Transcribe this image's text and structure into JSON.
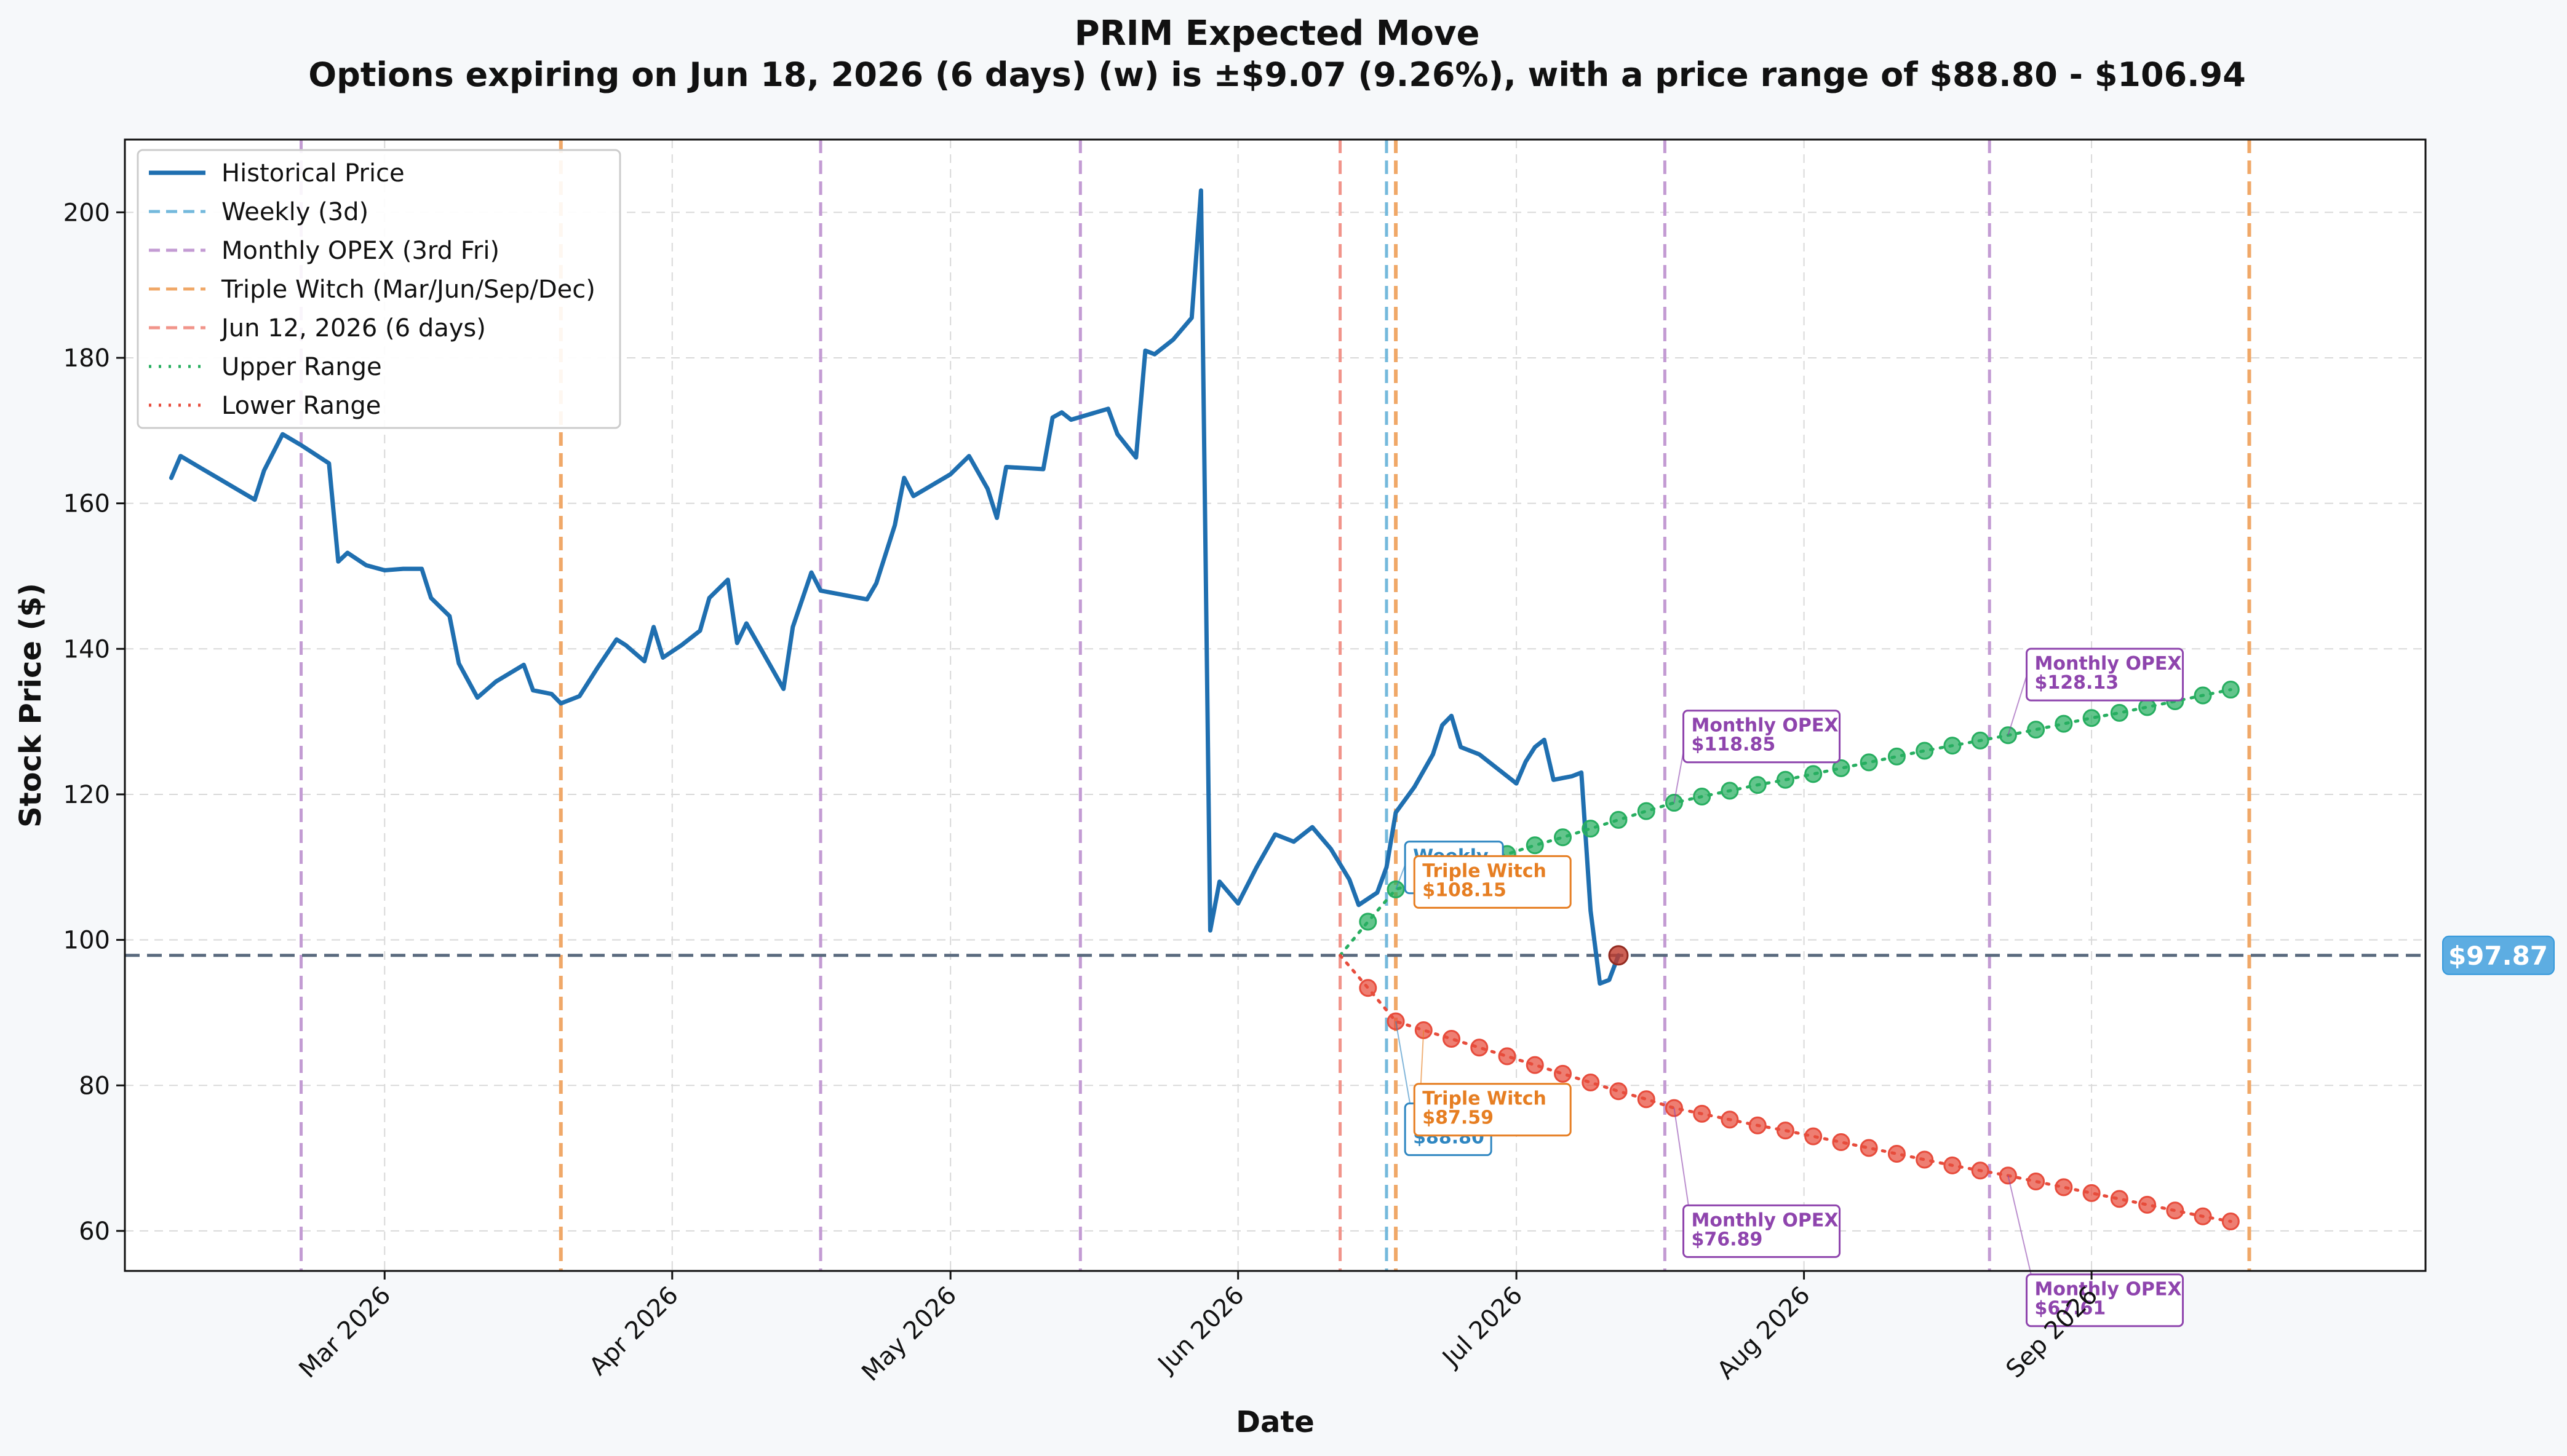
{
  "header": {
    "title": "PRIM Expected Move",
    "subtitle": "Options expiring on Jun 18, 2026 (6 days) (w) is ±$9.07 (9.26%), with a price range of $88.80 - $106.94"
  },
  "chart_data": {
    "type": "line",
    "xlabel": "Date",
    "ylabel": "Stock Price ($)",
    "ylim": [
      54.5,
      210
    ],
    "xlim": [
      "2026-02-01",
      "2026-10-07"
    ],
    "grid": true,
    "legend_position": "top-left",
    "x_ticks": [
      {
        "date": "2026-03-01",
        "label": "Mar 2026"
      },
      {
        "date": "2026-04-01",
        "label": "Apr 2026"
      },
      {
        "date": "2026-05-01",
        "label": "May 2026"
      },
      {
        "date": "2026-06-01",
        "label": "Jun 2026"
      },
      {
        "date": "2026-07-01",
        "label": "Jul 2026"
      },
      {
        "date": "2026-08-01",
        "label": "Aug 2026"
      },
      {
        "date": "2026-09-01",
        "label": "Sep 2026"
      }
    ],
    "y_ticks": [
      60,
      80,
      100,
      120,
      140,
      160,
      180,
      200
    ],
    "current_price": {
      "value": 97.87,
      "label": "$97.87",
      "color": "#5dade2"
    },
    "legend": [
      {
        "label": "Historical Price",
        "style": "solid",
        "color": "#1f6fb0"
      },
      {
        "label": "Weekly (3d)",
        "style": "dashed",
        "color": "#74b9dc"
      },
      {
        "label": "Monthly OPEX (3rd Fri)",
        "style": "dashed",
        "color": "#c39bd3"
      },
      {
        "label": "Triple Witch (Mar/Jun/Sep/Dec)",
        "style": "dashed",
        "color": "#f0a868"
      },
      {
        "label": "Jun 12, 2026 (6 days)",
        "style": "dashed",
        "color": "#f1948a"
      },
      {
        "label": "Upper Range",
        "style": "dotted",
        "color": "#27ae60"
      },
      {
        "label": "Lower Range",
        "style": "dotted",
        "color": "#e74c3c"
      }
    ],
    "vertical_lines": [
      {
        "date": "2026-02-20",
        "kind": "monthly",
        "color": "#c39bd3"
      },
      {
        "date": "2026-03-20",
        "kind": "triple",
        "color": "#f0a868"
      },
      {
        "date": "2026-04-17",
        "kind": "monthly",
        "color": "#c39bd3"
      },
      {
        "date": "2026-05-15",
        "kind": "monthly",
        "color": "#c39bd3"
      },
      {
        "date": "2026-06-12",
        "kind": "current",
        "color": "#f1948a"
      },
      {
        "date": "2026-06-17",
        "kind": "weekly",
        "color": "#74b9dc"
      },
      {
        "date": "2026-06-18",
        "kind": "triple",
        "color": "#f0a868"
      },
      {
        "date": "2026-07-17",
        "kind": "monthly",
        "color": "#c39bd3"
      },
      {
        "date": "2026-08-21",
        "kind": "monthly",
        "color": "#c39bd3"
      },
      {
        "date": "2026-09-18",
        "kind": "triple",
        "color": "#f0a868"
      }
    ],
    "series": [
      {
        "name": "Historical Price",
        "color": "#1f6fb0",
        "points": [
          [
            "2026-02-06",
            163.5
          ],
          [
            "2026-02-07",
            166.5
          ],
          [
            "2026-02-09",
            165
          ],
          [
            "2026-02-11",
            163.5
          ],
          [
            "2026-02-13",
            162
          ],
          [
            "2026-02-15",
            160.5
          ],
          [
            "2026-02-16",
            164.5
          ],
          [
            "2026-02-18",
            169.5
          ],
          [
            "2026-02-20",
            168
          ],
          [
            "2026-02-23",
            165.5
          ],
          [
            "2026-02-24",
            152
          ],
          [
            "2026-02-25",
            153.2
          ],
          [
            "2026-02-27",
            151.5
          ],
          [
            "2026-03-01",
            150.8
          ],
          [
            "2026-03-03",
            151
          ],
          [
            "2026-03-05",
            151
          ],
          [
            "2026-03-06",
            147
          ],
          [
            "2026-03-08",
            144.5
          ],
          [
            "2026-03-09",
            138
          ],
          [
            "2026-03-11",
            133.3
          ],
          [
            "2026-03-13",
            135.5
          ],
          [
            "2026-03-16",
            137.8
          ],
          [
            "2026-03-17",
            134.3
          ],
          [
            "2026-03-19",
            133.8
          ],
          [
            "2026-03-20",
            132.5
          ],
          [
            "2026-03-22",
            133.5
          ],
          [
            "2026-03-24",
            137.5
          ],
          [
            "2026-03-26",
            141.3
          ],
          [
            "2026-03-27",
            140.5
          ],
          [
            "2026-03-29",
            138.3
          ],
          [
            "2026-03-30",
            143
          ],
          [
            "2026-03-31",
            138.8
          ],
          [
            "2026-04-02",
            140.5
          ],
          [
            "2026-04-04",
            142.5
          ],
          [
            "2026-04-05",
            147
          ],
          [
            "2026-04-07",
            149.5
          ],
          [
            "2026-04-08",
            140.8
          ],
          [
            "2026-04-09",
            143.5
          ],
          [
            "2026-04-11",
            139
          ],
          [
            "2026-04-13",
            134.5
          ],
          [
            "2026-04-14",
            143
          ],
          [
            "2026-04-16",
            150.5
          ],
          [
            "2026-04-17",
            148
          ],
          [
            "2026-04-22",
            146.8
          ],
          [
            "2026-04-23",
            149
          ],
          [
            "2026-04-25",
            157
          ],
          [
            "2026-04-26",
            163.5
          ],
          [
            "2026-04-27",
            161
          ],
          [
            "2026-04-29",
            162.5
          ],
          [
            "2026-05-01",
            164
          ],
          [
            "2026-05-03",
            166.5
          ],
          [
            "2026-05-05",
            162
          ],
          [
            "2026-05-06",
            158
          ],
          [
            "2026-05-07",
            165
          ],
          [
            "2026-05-11",
            164.7
          ],
          [
            "2026-05-12",
            171.8
          ],
          [
            "2026-05-13",
            172.5
          ],
          [
            "2026-05-14",
            171.5
          ],
          [
            "2026-05-18",
            173
          ],
          [
            "2026-05-19",
            169.5
          ],
          [
            "2026-05-21",
            166.3
          ],
          [
            "2026-05-22",
            181
          ],
          [
            "2026-05-23",
            180.5
          ],
          [
            "2026-05-25",
            182.5
          ],
          [
            "2026-05-27",
            185.5
          ],
          [
            "2026-05-28",
            203
          ],
          [
            "2026-05-29",
            101.3
          ],
          [
            "2026-05-30",
            108
          ],
          [
            "2026-06-01",
            105
          ],
          [
            "2026-06-03",
            110
          ],
          [
            "2026-06-05",
            114.5
          ],
          [
            "2026-06-07",
            113.5
          ],
          [
            "2026-06-09",
            115.5
          ],
          [
            "2026-06-11",
            112.5
          ],
          [
            "2026-06-13",
            108.3
          ],
          [
            "2026-06-14",
            104.8
          ],
          [
            "2026-06-16",
            106.5
          ],
          [
            "2026-06-17",
            110
          ],
          [
            "2026-06-18",
            117.5
          ],
          [
            "2026-06-20",
            121
          ],
          [
            "2026-06-22",
            125.5
          ],
          [
            "2026-06-23",
            129.5
          ],
          [
            "2026-06-24",
            130.8
          ],
          [
            "2026-06-25",
            126.5
          ],
          [
            "2026-06-27",
            125.5
          ],
          [
            "2026-06-29",
            123.5
          ],
          [
            "2026-07-01",
            121.5
          ],
          [
            "2026-07-02",
            124.5
          ],
          [
            "2026-07-03",
            126.5
          ],
          [
            "2026-07-04",
            127.5
          ],
          [
            "2026-07-05",
            122
          ],
          [
            "2026-07-07",
            122.5
          ],
          [
            "2026-07-08",
            123
          ],
          [
            "2026-07-09",
            104
          ],
          [
            "2026-07-10",
            94
          ],
          [
            "2026-07-11",
            94.5
          ],
          [
            "2026-07-12",
            97.87
          ]
        ]
      },
      {
        "name": "Upper Range",
        "color": "#27ae60",
        "points": [
          [
            "2026-06-12",
            97.87
          ],
          [
            "2026-06-15",
            102.5
          ],
          [
            "2026-06-18",
            106.94
          ],
          [
            "2026-06-21",
            108.15
          ],
          [
            "2026-06-24",
            109.4
          ],
          [
            "2026-06-27",
            110.6
          ],
          [
            "2026-06-30",
            111.8
          ],
          [
            "2026-07-03",
            113
          ],
          [
            "2026-07-06",
            114.1
          ],
          [
            "2026-07-09",
            115.3
          ],
          [
            "2026-07-12",
            116.5
          ],
          [
            "2026-07-15",
            117.7
          ],
          [
            "2026-07-18",
            118.85
          ],
          [
            "2026-07-21",
            119.7
          ],
          [
            "2026-07-24",
            120.5
          ],
          [
            "2026-07-27",
            121.3
          ],
          [
            "2026-07-30",
            122
          ],
          [
            "2026-08-02",
            122.8
          ],
          [
            "2026-08-05",
            123.6
          ],
          [
            "2026-08-08",
            124.4
          ],
          [
            "2026-08-11",
            125.2
          ],
          [
            "2026-08-14",
            126
          ],
          [
            "2026-08-17",
            126.7
          ],
          [
            "2026-08-20",
            127.4
          ],
          [
            "2026-08-23",
            128.13
          ],
          [
            "2026-08-26",
            128.9
          ],
          [
            "2026-08-29",
            129.7
          ],
          [
            "2026-09-01",
            130.5
          ],
          [
            "2026-09-04",
            131.2
          ],
          [
            "2026-09-07",
            132
          ],
          [
            "2026-09-10",
            132.8
          ],
          [
            "2026-09-13",
            133.6
          ],
          [
            "2026-09-16",
            134.4
          ]
        ]
      },
      {
        "name": "Lower Range",
        "color": "#e74c3c",
        "points": [
          [
            "2026-06-12",
            97.87
          ],
          [
            "2026-06-15",
            93.4
          ],
          [
            "2026-06-18",
            88.8
          ],
          [
            "2026-06-21",
            87.59
          ],
          [
            "2026-06-24",
            86.4
          ],
          [
            "2026-06-27",
            85.2
          ],
          [
            "2026-06-30",
            84
          ],
          [
            "2026-07-03",
            82.8
          ],
          [
            "2026-07-06",
            81.6
          ],
          [
            "2026-07-09",
            80.4
          ],
          [
            "2026-07-12",
            79.2
          ],
          [
            "2026-07-15",
            78.1
          ],
          [
            "2026-07-18",
            76.89
          ],
          [
            "2026-07-21",
            76.1
          ],
          [
            "2026-07-24",
            75.3
          ],
          [
            "2026-07-27",
            74.5
          ],
          [
            "2026-07-30",
            73.8
          ],
          [
            "2026-08-02",
            73
          ],
          [
            "2026-08-05",
            72.2
          ],
          [
            "2026-08-08",
            71.4
          ],
          [
            "2026-08-11",
            70.6
          ],
          [
            "2026-08-14",
            69.8
          ],
          [
            "2026-08-17",
            69
          ],
          [
            "2026-08-20",
            68.3
          ],
          [
            "2026-08-23",
            67.61
          ],
          [
            "2026-08-26",
            66.8
          ],
          [
            "2026-08-29",
            66
          ],
          [
            "2026-09-01",
            65.2
          ],
          [
            "2026-09-04",
            64.4
          ],
          [
            "2026-09-07",
            63.6
          ],
          [
            "2026-09-10",
            62.8
          ],
          [
            "2026-09-13",
            62
          ],
          [
            "2026-09-16",
            61.3
          ]
        ]
      }
    ],
    "annotations": [
      {
        "lines": [
          "Weekly",
          "$106.94"
        ],
        "color": "#2e86c1",
        "date": "2026-06-18",
        "value": 106.94,
        "box_date": "2026-06-19",
        "box_value": 112.5
      },
      {
        "lines": [
          "Triple Witch",
          "$108.15"
        ],
        "color": "#e67e22",
        "date": "2026-06-21",
        "value": 108.15,
        "box_date": "2026-06-20",
        "box_value": 110.5
      },
      {
        "lines": [
          "Monthly OPEX",
          "$118.85"
        ],
        "color": "#8e44ad",
        "date": "2026-07-18",
        "value": 118.85,
        "box_date": "2026-07-19",
        "box_value": 130.5
      },
      {
        "lines": [
          "Monthly OPEX",
          "$128.13"
        ],
        "color": "#8e44ad",
        "date": "2026-08-23",
        "value": 128.13,
        "box_date": "2026-08-25",
        "box_value": 139
      },
      {
        "lines": [
          "Weekly",
          "$88.80"
        ],
        "color": "#2e86c1",
        "date": "2026-06-18",
        "value": 88.8,
        "box_date": "2026-06-19",
        "box_value": 76.5
      },
      {
        "lines": [
          "Triple Witch",
          "$87.59"
        ],
        "color": "#e67e22",
        "date": "2026-06-21",
        "value": 87.59,
        "box_date": "2026-06-20",
        "box_value": 79.2
      },
      {
        "lines": [
          "Monthly OPEX",
          "$76.89"
        ],
        "color": "#8e44ad",
        "date": "2026-07-18",
        "value": 76.89,
        "box_date": "2026-07-19",
        "box_value": 62.5
      },
      {
        "lines": [
          "Monthly OPEX",
          "$67.61"
        ],
        "color": "#8e44ad",
        "date": "2026-08-23",
        "value": 67.61,
        "box_date": "2026-08-25",
        "box_value": 53
      }
    ]
  }
}
